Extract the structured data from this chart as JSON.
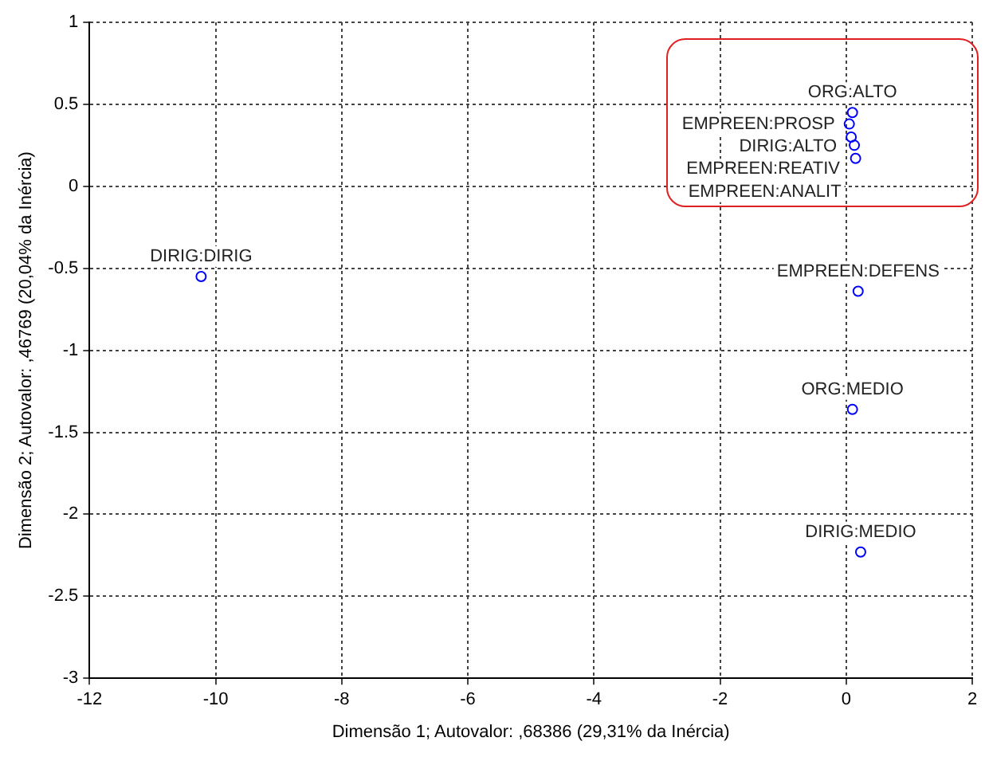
{
  "chart_data": {
    "type": "scatter",
    "xlabel": "Dimensão 1; Autovalor: ,68386 (29,31% da Inércia)",
    "ylabel": "Dimensão 2; Autovalor: ,46769 (20,04% da Inércia)",
    "x": [
      -10.23,
      0.1,
      0.05,
      0.08,
      0.13,
      0.15,
      0.19,
      0.1,
      0.23
    ],
    "series": [
      {
        "color": "#0000ff",
        "values": [
          -0.55,
          0.45,
          0.38,
          0.3,
          0.25,
          0.17,
          -0.64,
          -1.36,
          -2.23
        ]
      }
    ],
    "annotations": [
      {
        "text": "DIRIG:DIRIG",
        "x": -10.23,
        "y": -0.55
      },
      {
        "text": "ORG:ALTO",
        "x": 0.1,
        "y": 0.45
      },
      {
        "text": "EMPREEN:PROSP",
        "x": 0.05,
        "y": 0.38
      },
      {
        "text": "DIRIG:ALTO",
        "x": 0.08,
        "y": 0.3
      },
      {
        "text": "EMPREEN:REATIV",
        "x": 0.13,
        "y": 0.25
      },
      {
        "text": "EMPREEN:ANALIT",
        "x": 0.15,
        "y": 0.17
      },
      {
        "text": "EMPREEN:DEFENS",
        "x": 0.19,
        "y": -0.64
      },
      {
        "text": "ORG:MEDIO",
        "x": 0.1,
        "y": -1.36
      },
      {
        "text": "DIRIG:MEDIO",
        "x": 0.23,
        "y": -2.23
      }
    ],
    "xlim": [
      -12,
      2
    ],
    "xticks": [
      -12,
      -10,
      -8,
      -6,
      -4,
      -2,
      0,
      2
    ],
    "ylim": [
      -3,
      1
    ],
    "yticks": [
      -3,
      -2.5,
      -2,
      -1.5,
      -1,
      -0.5,
      0,
      0.5,
      1
    ],
    "grid": true,
    "marker": "circle",
    "legend": false
  }
}
